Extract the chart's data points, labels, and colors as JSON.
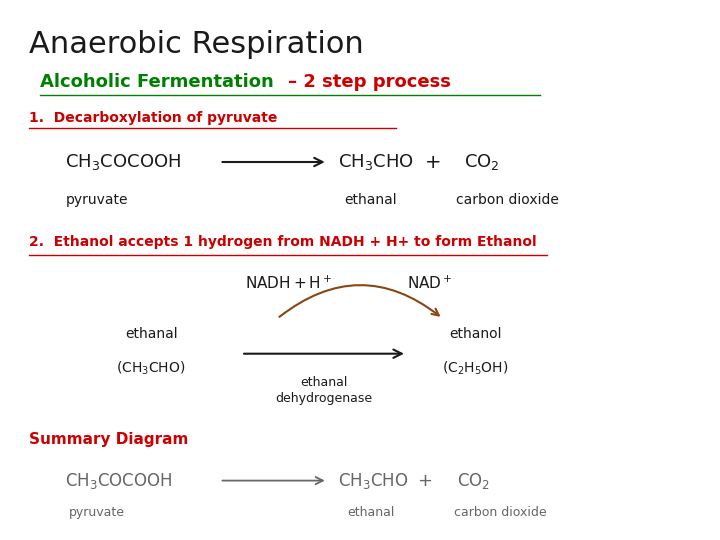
{
  "title": "Anaerobic Respiration",
  "subtitle_green": "Alcoholic Fermentation ",
  "subtitle_dash": "– 2 step process",
  "step1_label": "1.  Decarboxylation of pyruvate",
  "step2_label": "2.  Ethanol accepts 1 hydrogen from NADH + H+ to form Ethanol",
  "summary_label": "Summary Diagram",
  "bg_color": "#ffffff",
  "title_color": "#1a1a1a",
  "green_color": "#008000",
  "red_color": "#cc0000",
  "brown_color": "#8B4513",
  "black": "#1a1a1a",
  "gray": "#666666"
}
